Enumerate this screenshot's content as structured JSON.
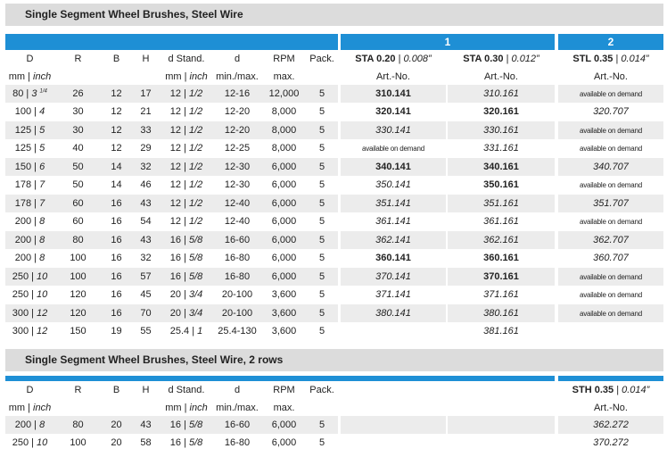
{
  "section1": {
    "title": "Single Segment Wheel Brushes, Steel Wire",
    "group1": "1",
    "group2": "2",
    "col_headers": [
      "D",
      "R",
      "B",
      "H",
      "d Stand.",
      "d",
      "RPM",
      "Pack."
    ],
    "col_subheaders": [
      "mm | inch",
      "",
      "",
      "",
      "mm | inch",
      "min./max.",
      "max.",
      ""
    ],
    "products": [
      {
        "name": "STA 0.20",
        "spec": "0.008”",
        "sub": "Art.-No."
      },
      {
        "name": "STA 0.30",
        "spec": "0.012”",
        "sub": "Art.-No."
      },
      {
        "name": "STL 0.35",
        "spec": "0.014”",
        "sub": "Art.-No."
      }
    ],
    "rows": [
      {
        "d_mm": "80",
        "d_in": "3",
        "d_frac": "1/4",
        "r": "26",
        "b": "12",
        "h": "17",
        "ds_mm": "12",
        "ds_in": "1/2",
        "d": "12-16",
        "rpm": "12,000",
        "pack": "5",
        "a1": "310.141",
        "a1s": "bold",
        "a2": "310.161",
        "a2s": "ital",
        "a3": "available on demand",
        "a3s": "avail"
      },
      {
        "d_mm": "100",
        "d_in": "4",
        "r": "30",
        "b": "12",
        "h": "21",
        "ds_mm": "12",
        "ds_in": "1/2",
        "d": "12-20",
        "rpm": "8,000",
        "pack": "5",
        "a1": "320.141",
        "a1s": "bold",
        "a2": "320.161",
        "a2s": "bold",
        "a3": "320.707",
        "a3s": "ital"
      },
      {
        "d_mm": "125",
        "d_in": "5",
        "r": "30",
        "b": "12",
        "h": "33",
        "ds_mm": "12",
        "ds_in": "1/2",
        "d": "12-20",
        "rpm": "8,000",
        "pack": "5",
        "a1": "330.141",
        "a1s": "ital",
        "a2": "330.161",
        "a2s": "ital",
        "a3": "available on demand",
        "a3s": "avail"
      },
      {
        "d_mm": "125",
        "d_in": "5",
        "r": "40",
        "b": "12",
        "h": "29",
        "ds_mm": "12",
        "ds_in": "1/2",
        "d": "12-25",
        "rpm": "8,000",
        "pack": "5",
        "a1": "available on demand",
        "a1s": "avail",
        "a2": "331.161",
        "a2s": "ital",
        "a3": "available on demand",
        "a3s": "avail"
      },
      {
        "d_mm": "150",
        "d_in": "6",
        "r": "50",
        "b": "14",
        "h": "32",
        "ds_mm": "12",
        "ds_in": "1/2",
        "d": "12-30",
        "rpm": "6,000",
        "pack": "5",
        "a1": "340.141",
        "a1s": "bold",
        "a2": "340.161",
        "a2s": "bold",
        "a3": "340.707",
        "a3s": "ital"
      },
      {
        "d_mm": "178",
        "d_in": "7",
        "r": "50",
        "b": "14",
        "h": "46",
        "ds_mm": "12",
        "ds_in": "1/2",
        "d": "12-30",
        "rpm": "6,000",
        "pack": "5",
        "a1": "350.141",
        "a1s": "ital",
        "a2": "350.161",
        "a2s": "bold",
        "a3": "available on demand",
        "a3s": "avail"
      },
      {
        "d_mm": "178",
        "d_in": "7",
        "r": "60",
        "b": "16",
        "h": "43",
        "ds_mm": "12",
        "ds_in": "1/2",
        "d": "12-40",
        "rpm": "6,000",
        "pack": "5",
        "a1": "351.141",
        "a1s": "ital",
        "a2": "351.161",
        "a2s": "ital",
        "a3": "351.707",
        "a3s": "ital"
      },
      {
        "d_mm": "200",
        "d_in": "8",
        "r": "60",
        "b": "16",
        "h": "54",
        "ds_mm": "12",
        "ds_in": "1/2",
        "d": "12-40",
        "rpm": "6,000",
        "pack": "5",
        "a1": "361.141",
        "a1s": "ital",
        "a2": "361.161",
        "a2s": "ital",
        "a3": "available on demand",
        "a3s": "avail"
      },
      {
        "d_mm": "200",
        "d_in": "8",
        "r": "80",
        "b": "16",
        "h": "43",
        "ds_mm": "16",
        "ds_in": "5/8",
        "d": "16-60",
        "rpm": "6,000",
        "pack": "5",
        "a1": "362.141",
        "a1s": "ital",
        "a2": "362.161",
        "a2s": "ital",
        "a3": "362.707",
        "a3s": "ital"
      },
      {
        "d_mm": "200",
        "d_in": "8",
        "r": "100",
        "b": "16",
        "h": "32",
        "ds_mm": "16",
        "ds_in": "5/8",
        "d": "16-80",
        "rpm": "6,000",
        "pack": "5",
        "a1": "360.141",
        "a1s": "bold",
        "a2": "360.161",
        "a2s": "bold",
        "a3": "360.707",
        "a3s": "ital"
      },
      {
        "d_mm": "250",
        "d_in": "10",
        "r": "100",
        "b": "16",
        "h": "57",
        "ds_mm": "16",
        "ds_in": "5/8",
        "d": "16-80",
        "rpm": "6,000",
        "pack": "5",
        "a1": "370.141",
        "a1s": "ital",
        "a2": "370.161",
        "a2s": "bold",
        "a3": "available on demand",
        "a3s": "avail"
      },
      {
        "d_mm": "250",
        "d_in": "10",
        "r": "120",
        "b": "16",
        "h": "45",
        "ds_mm": "20",
        "ds_in": "3/4",
        "d": "20-100",
        "rpm": "3,600",
        "pack": "5",
        "a1": "371.141",
        "a1s": "ital",
        "a2": "371.161",
        "a2s": "ital",
        "a3": "available on demand",
        "a3s": "avail"
      },
      {
        "d_mm": "300",
        "d_in": "12",
        "r": "120",
        "b": "16",
        "h": "70",
        "ds_mm": "20",
        "ds_in": "3/4",
        "d": "20-100",
        "rpm": "3,600",
        "pack": "5",
        "a1": "380.141",
        "a1s": "ital",
        "a2": "380.161",
        "a2s": "ital",
        "a3": "available on demand",
        "a3s": "avail"
      },
      {
        "d_mm": "300",
        "d_in": "12",
        "r": "150",
        "b": "19",
        "h": "55",
        "ds_mm": "25.4",
        "ds_in": "1",
        "d": "25.4-130",
        "rpm": "3,600",
        "pack": "5",
        "a1": "",
        "a1s": "ital",
        "a2": "381.161",
        "a2s": "ital",
        "a3": "",
        "a3s": "avail"
      }
    ]
  },
  "section2": {
    "title": "Single Segment Wheel Brushes, Steel Wire, 2 rows",
    "col_headers": [
      "D",
      "R",
      "B",
      "H",
      "d Stand.",
      "d",
      "RPM",
      "Pack."
    ],
    "col_subheaders": [
      "mm | inch",
      "",
      "",
      "",
      "mm | inch",
      "min./max.",
      "max.",
      ""
    ],
    "product": {
      "name": "STH 0.35",
      "spec": "0.014”",
      "sub": "Art.-No."
    },
    "rows": [
      {
        "d_mm": "200",
        "d_in": "8",
        "r": "80",
        "b": "20",
        "h": "43",
        "ds_mm": "16",
        "ds_in": "5/8",
        "d": "16-60",
        "rpm": "6,000",
        "pack": "5",
        "a": "362.272"
      },
      {
        "d_mm": "250",
        "d_in": "10",
        "r": "100",
        "b": "20",
        "h": "58",
        "ds_mm": "16",
        "ds_in": "5/8",
        "d": "16-80",
        "rpm": "6,000",
        "pack": "5",
        "a": "370.272"
      }
    ]
  }
}
